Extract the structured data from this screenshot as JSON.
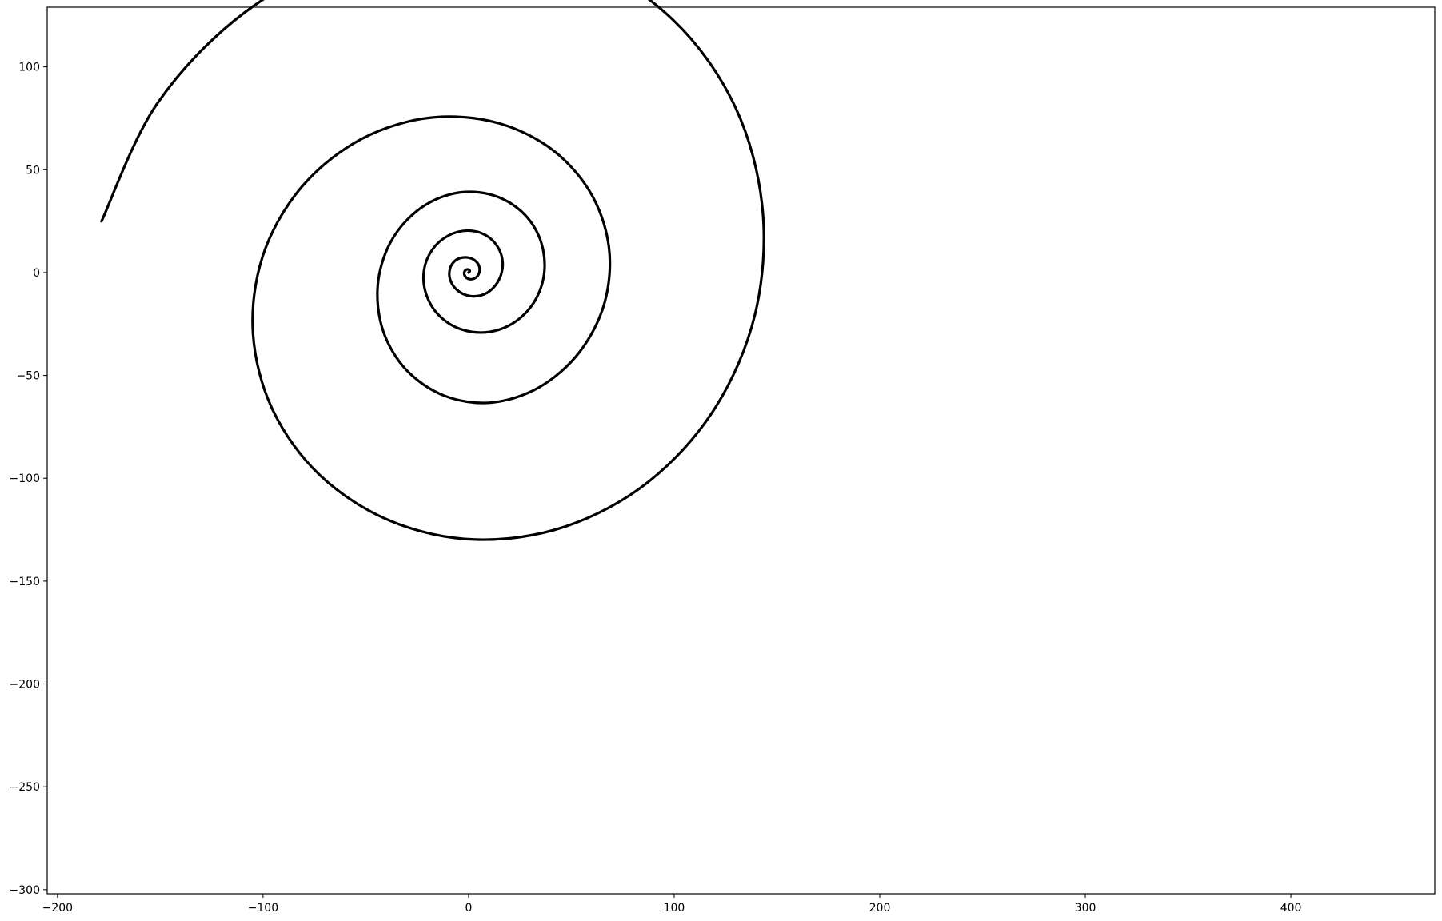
{
  "chart_data": {
    "type": "line",
    "title": "",
    "xlabel": "",
    "ylabel": "",
    "xlim": [
      -205,
      470
    ],
    "ylim": [
      -302,
      129
    ],
    "grid": false,
    "legend": "none",
    "x_ticks": [
      -200,
      -100,
      0,
      100,
      200,
      300,
      400
    ],
    "x_tick_labels": [
      "−200",
      "−100",
      "0",
      "100",
      "200",
      "300",
      "400"
    ],
    "y_ticks": [
      100,
      50,
      0,
      -50,
      -100,
      -150,
      -200,
      -250,
      -300
    ],
    "y_tick_labels": [
      "100",
      "50",
      "0",
      "−50",
      "−100",
      "−150",
      "−200",
      "−250",
      "−300"
    ],
    "series": [
      {
        "color": "#000000",
        "points": [
          [
            0,
            0
          ],
          [
            0.63,
            0.75
          ],
          [
            0.12,
            1.43
          ],
          [
            -1.04,
            1.44
          ],
          [
            -1.95,
            0.55
          ],
          [
            -2.05,
            -1.0
          ],
          [
            -1.07,
            -2.5
          ],
          [
            0.8,
            -3.25
          ],
          [
            3.0,
            -2.8
          ],
          [
            4.83,
            -0.98
          ],
          [
            5.4,
            1.85
          ],
          [
            4.2,
            4.8
          ],
          [
            1.2,
            6.9
          ],
          [
            -2.8,
            7.3
          ],
          [
            -6.6,
            5.7
          ],
          [
            -9.0,
            2.0
          ],
          [
            -9.1,
            -2.9
          ],
          [
            -6.5,
            -7.6
          ],
          [
            -1.6,
            -10.8
          ],
          [
            4.5,
            -11.4
          ],
          [
            10.5,
            -8.8
          ],
          [
            15.0,
            -3.1
          ],
          [
            16.6,
            4.6
          ],
          [
            14.3,
            12.3
          ],
          [
            8.3,
            18.2
          ],
          [
            -0.4,
            20.4
          ],
          [
            -9.8,
            18.0
          ],
          [
            -17.6,
            11.2
          ],
          [
            -21.7,
            1.0
          ],
          [
            -20.6,
            -10.6
          ],
          [
            -14.2,
            -21.0
          ],
          [
            -3.2,
            -27.7
          ],
          [
            10.3,
            -28.8
          ],
          [
            23.3,
            -23.5
          ],
          [
            33.0,
            -12.4
          ],
          [
            37.0,
            2.5
          ],
          [
            34.0,
            18.2
          ],
          [
            24.2,
            31.0
          ],
          [
            9.3,
            38.3
          ],
          [
            -8.3,
            38.2
          ],
          [
            -25.2,
            29.9
          ],
          [
            -38.2,
            14.3
          ],
          [
            -44.2,
            -6.3
          ],
          [
            -41.6,
            -28.3
          ],
          [
            -30.3,
            -47.3
          ],
          [
            -11.7,
            -59.9
          ],
          [
            11.0,
            -63.2
          ],
          [
            34.3,
            -55.8
          ],
          [
            54.0,
            -38.6
          ],
          [
            66.2,
            -14.5
          ],
          [
            68.2,
            12.9
          ],
          [
            58.8,
            39.7
          ],
          [
            38.6,
            61.3
          ],
          [
            10.0,
            73.8
          ],
          [
            -23.0,
            74.7
          ],
          [
            -55.6,
            63.0
          ],
          [
            -82.8,
            39.7
          ],
          [
            -100.3,
            7.6
          ],
          [
            -104.9,
            -29.6
          ],
          [
            -95.3,
            -66.8
          ],
          [
            -72.0,
            -98.8
          ],
          [
            -37.6,
            -120.9
          ],
          [
            3.5,
            -129.8
          ],
          [
            47.0,
            -123.5
          ],
          [
            87.4,
            -101.8
          ],
          [
            119.6,
            -66.3
          ],
          [
            139.3,
            -20.4
          ],
          [
            143.0,
            30.6
          ],
          [
            129.7,
            80.5
          ],
          [
            99.7,
            122.6
          ],
          [
            55.5,
            151.4
          ],
          [
            1.5,
            162.6
          ],
          [
            -55.6,
            154.2
          ],
          [
            -109.0,
            126.4
          ],
          [
            -151.8,
            81.7
          ],
          [
            -178.6,
            24.9
          ]
        ]
      }
    ]
  }
}
